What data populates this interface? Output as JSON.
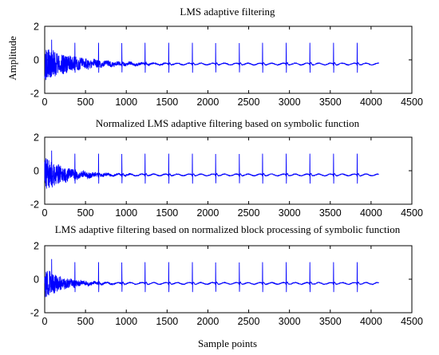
{
  "chart_data": [
    {
      "type": "line",
      "title": "LMS adaptive filtering",
      "ylabel": "Amplitude",
      "xlabel": "",
      "xlim": [
        0,
        4500
      ],
      "ylim": [
        -2,
        2
      ],
      "xticks": [
        0,
        500,
        1000,
        1500,
        2000,
        2500,
        3000,
        3500,
        4000,
        4500
      ],
      "yticks": [
        -2,
        0,
        2
      ],
      "color": "#0000ff",
      "grid": false,
      "signal": {
        "n_samples": 4096,
        "baseline": -0.25,
        "spike_positions": [
          85,
          370,
          660,
          945,
          1230,
          1520,
          1810,
          2095,
          2385,
          2670,
          2960,
          3250,
          3540,
          3830
        ],
        "spike_peaks": [
          1.2,
          1.0,
          1.0,
          1.0,
          1.0,
          1.0,
          1.0,
          1.0,
          1.0,
          1.0,
          1.0,
          1.0,
          1.0,
          1.0
        ],
        "initial_noise_amplitude": 1.0,
        "noise_decay_samples": 420
      }
    },
    {
      "type": "line",
      "title": "Normalized LMS adaptive filtering based on symbolic function",
      "ylabel": "",
      "xlabel": "",
      "xlim": [
        0,
        4500
      ],
      "ylim": [
        -2,
        2
      ],
      "xticks": [
        0,
        500,
        1000,
        1500,
        2000,
        2500,
        3000,
        3500,
        4000,
        4500
      ],
      "yticks": [
        -2,
        0,
        2
      ],
      "color": "#0000ff",
      "grid": false,
      "signal": {
        "n_samples": 4096,
        "baseline": -0.25,
        "spike_positions": [
          85,
          370,
          660,
          945,
          1230,
          1520,
          1810,
          2095,
          2385,
          2670,
          2960,
          3250,
          3540,
          3830
        ],
        "spike_peaks": [
          1.2,
          1.0,
          1.0,
          1.0,
          1.0,
          1.0,
          1.0,
          1.0,
          1.0,
          1.0,
          1.0,
          1.0,
          1.0,
          1.0
        ],
        "initial_noise_amplitude": 1.0,
        "noise_decay_samples": 300
      }
    },
    {
      "type": "line",
      "title": "LMS adaptive filtering based on normalized block processing of symbolic function",
      "ylabel": "",
      "xlabel": "Sample points",
      "xlim": [
        0,
        4500
      ],
      "ylim": [
        -2,
        2
      ],
      "xticks": [
        0,
        500,
        1000,
        1500,
        2000,
        2500,
        3000,
        3500,
        4000,
        4500
      ],
      "yticks": [
        -2,
        0,
        2
      ],
      "color": "#0000ff",
      "grid": false,
      "signal": {
        "n_samples": 4096,
        "baseline": -0.25,
        "spike_positions": [
          85,
          370,
          660,
          945,
          1230,
          1520,
          1810,
          2095,
          2385,
          2670,
          2960,
          3250,
          3540,
          3830
        ],
        "spike_peaks": [
          1.2,
          1.0,
          1.0,
          1.0,
          1.0,
          1.0,
          1.0,
          1.0,
          1.0,
          1.0,
          1.0,
          1.0,
          1.0,
          1.0
        ],
        "initial_noise_amplitude": 0.9,
        "noise_decay_samples": 260
      }
    }
  ]
}
